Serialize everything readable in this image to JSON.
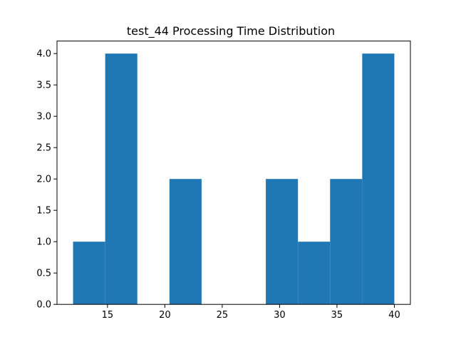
{
  "chart_data": {
    "type": "bar",
    "title": "test_44 Processing Time Distribution",
    "xlabel": "",
    "ylabel": "",
    "bins": [
      {
        "start": 12.0,
        "end": 14.8,
        "count": 1
      },
      {
        "start": 14.8,
        "end": 17.6,
        "count": 4
      },
      {
        "start": 17.6,
        "end": 20.4,
        "count": 0
      },
      {
        "start": 20.4,
        "end": 23.2,
        "count": 2
      },
      {
        "start": 23.2,
        "end": 26.0,
        "count": 0
      },
      {
        "start": 26.0,
        "end": 28.8,
        "count": 0
      },
      {
        "start": 28.8,
        "end": 31.6,
        "count": 2
      },
      {
        "start": 31.6,
        "end": 34.4,
        "count": 1
      },
      {
        "start": 34.4,
        "end": 37.2,
        "count": 2
      },
      {
        "start": 37.2,
        "end": 40.0,
        "count": 4
      }
    ],
    "xlim": [
      10.6,
      41.4
    ],
    "ylim": [
      0,
      4.2
    ],
    "xticks": [
      15,
      20,
      25,
      30,
      35,
      40
    ],
    "xtick_labels": [
      "15",
      "20",
      "25",
      "30",
      "35",
      "40"
    ],
    "yticks": [
      0.0,
      0.5,
      1.0,
      1.5,
      2.0,
      2.5,
      3.0,
      3.5,
      4.0
    ],
    "ytick_labels": [
      "0.0",
      "0.5",
      "1.0",
      "1.5",
      "2.0",
      "2.5",
      "3.0",
      "3.5",
      "4.0"
    ],
    "bar_color": "#1f77b4",
    "grid": false,
    "legend": "none"
  }
}
